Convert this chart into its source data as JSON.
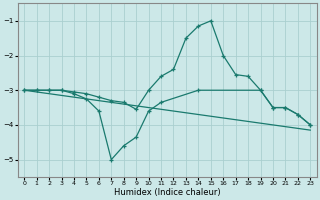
{
  "xlabel": "Humidex (Indice chaleur)",
  "background_color": "#cce8e8",
  "grid_color": "#aacfcf",
  "line_color": "#1a7a6e",
  "xlim": [
    -0.5,
    23.5
  ],
  "ylim": [
    -5.5,
    -0.5
  ],
  "yticks": [
    -5,
    -4,
    -3,
    -2,
    -1
  ],
  "xticks": [
    0,
    1,
    2,
    3,
    4,
    5,
    6,
    7,
    8,
    9,
    10,
    11,
    12,
    13,
    14,
    15,
    16,
    17,
    18,
    19,
    20,
    21,
    22,
    23
  ],
  "line1_x": [
    0,
    1,
    2,
    3,
    4,
    5,
    6,
    7,
    8,
    9,
    10,
    11,
    12,
    13,
    14,
    15,
    16,
    17,
    18,
    19,
    20,
    21,
    22,
    23
  ],
  "line1_y": [
    -3.0,
    -3.0,
    -3.0,
    -3.0,
    -3.05,
    -3.1,
    -3.2,
    -3.3,
    -3.35,
    -3.55,
    -3.0,
    -2.6,
    -2.4,
    -1.5,
    -1.15,
    -1.0,
    -2.0,
    -2.55,
    -2.6,
    -3.0,
    -3.5,
    -3.5,
    -3.7,
    -4.0
  ],
  "line2_x": [
    0,
    1,
    2,
    3,
    4,
    5,
    6,
    7,
    8,
    9,
    10,
    11,
    14,
    19,
    20,
    21,
    22,
    23
  ],
  "line2_y": [
    -3.0,
    -3.0,
    -3.0,
    -3.0,
    -3.1,
    -3.25,
    -3.6,
    -5.0,
    -4.6,
    -4.35,
    -3.6,
    -3.35,
    -3.0,
    -3.0,
    -3.5,
    -3.5,
    -3.7,
    -4.0
  ],
  "line3_x": [
    0,
    23
  ],
  "line3_y": [
    -3.0,
    -4.15
  ]
}
